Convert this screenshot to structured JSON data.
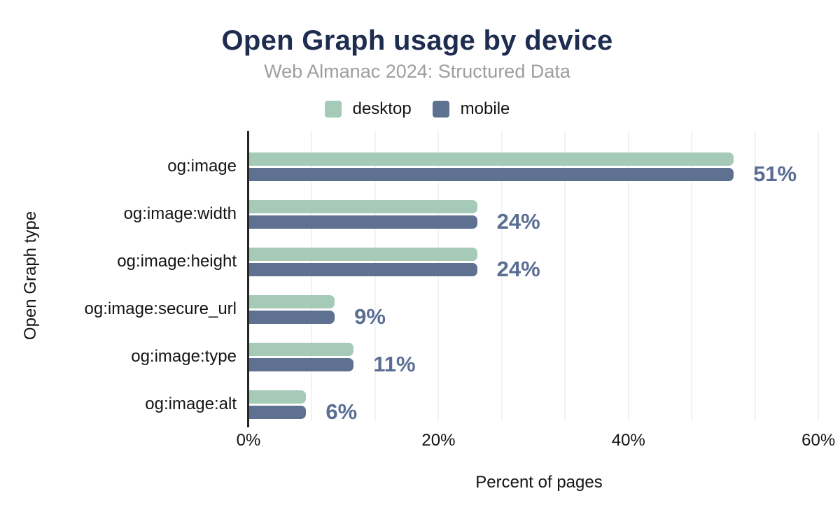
{
  "header": {
    "title": "Open Graph usage by device",
    "subtitle": "Web Almanac 2024: Structured Data"
  },
  "legend": {
    "items": [
      {
        "label": "desktop",
        "color": "#a6cab8"
      },
      {
        "label": "mobile",
        "color": "#5e7190"
      }
    ]
  },
  "chart_data": {
    "type": "bar",
    "orientation": "horizontal",
    "title": "Open Graph usage by device",
    "subtitle": "Web Almanac 2024: Structured Data",
    "categories": [
      "og:image",
      "og:image:width",
      "og:image:height",
      "og:image:secure_url",
      "og:image:type",
      "og:image:alt"
    ],
    "series": [
      {
        "name": "desktop",
        "color": "#a6cab8",
        "values": [
          51,
          24,
          24,
          9,
          11,
          6
        ]
      },
      {
        "name": "mobile",
        "color": "#5e7190",
        "values": [
          51,
          24,
          24,
          9,
          11,
          6
        ]
      }
    ],
    "data_labels": [
      "51%",
      "24%",
      "24%",
      "9%",
      "11%",
      "6%"
    ],
    "xlabel": "Percent of pages",
    "ylabel": "Open Graph type",
    "x_ticks": [
      {
        "label": "0%",
        "value": 0
      },
      {
        "label": "20%",
        "value": 20
      },
      {
        "label": "40%",
        "value": 40
      },
      {
        "label": "60%",
        "value": 60
      }
    ],
    "xlim": [
      0,
      61.2
    ],
    "grid": {
      "on": true,
      "type": "vertical-minor",
      "step_pct": 6.6667
    },
    "legend_position": "top-center"
  },
  "colors": {
    "title": "#1e2d4f",
    "subtitle": "#9e9e9e",
    "desktop": "#a6cab8",
    "mobile": "#5e7190",
    "value_label": "#5a6e93",
    "gridline": "#f2f2f2",
    "axis_line": "#262626",
    "text": "#141414"
  }
}
